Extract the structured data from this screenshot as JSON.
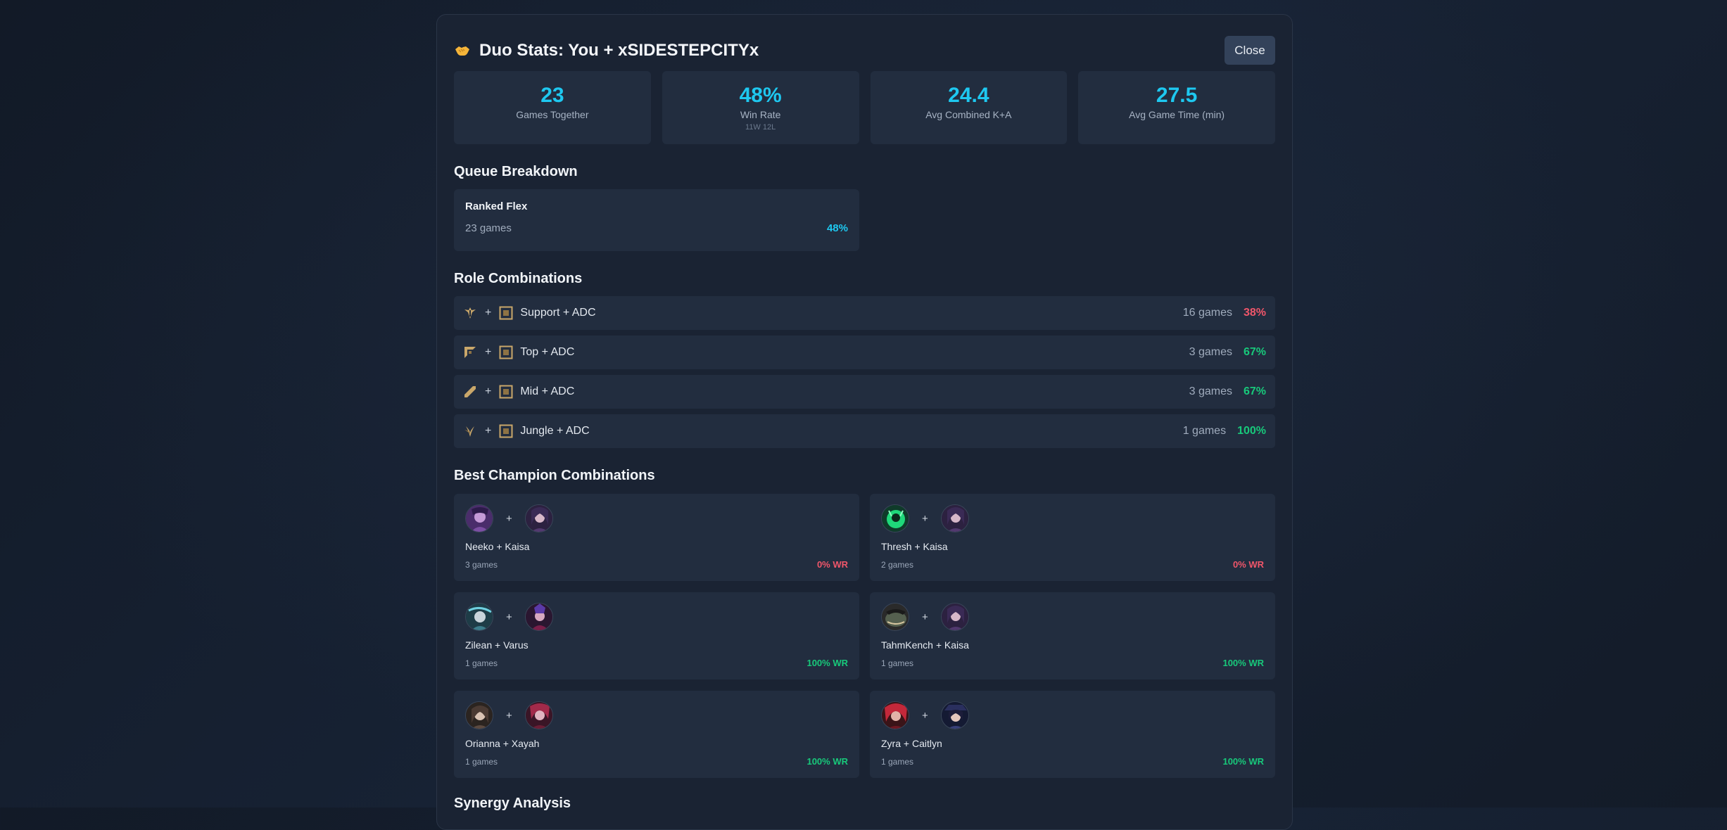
{
  "modal": {
    "title": "Duo Stats: You + xSIDESTEPCITYx",
    "title_icon": "handshake-icon",
    "close_label": "Close"
  },
  "stats": [
    {
      "value": "23",
      "label": "Games Together",
      "sub": ""
    },
    {
      "value": "48%",
      "label": "Win Rate",
      "sub": "11W 12L"
    },
    {
      "value": "24.4",
      "label": "Avg Combined K+A",
      "sub": ""
    },
    {
      "value": "27.5",
      "label": "Avg Game Time (min)",
      "sub": ""
    }
  ],
  "queue_section": {
    "title": "Queue Breakdown",
    "items": [
      {
        "name": "Ranked Flex",
        "games": "23 games",
        "winrate": "48%"
      }
    ]
  },
  "role_section": {
    "title": "Role Combinations",
    "items": [
      {
        "icon1": "support-role-icon",
        "icon2": "adc-role-icon",
        "label": "Support + ADC",
        "games": "16 games",
        "winrate": "38%",
        "status": "loss"
      },
      {
        "icon1": "top-role-icon",
        "icon2": "adc-role-icon",
        "label": "Top + ADC",
        "games": "3 games",
        "winrate": "67%",
        "status": "win"
      },
      {
        "icon1": "mid-role-icon",
        "icon2": "adc-role-icon",
        "label": "Mid + ADC",
        "games": "3 games",
        "winrate": "67%",
        "status": "win"
      },
      {
        "icon1": "jungle-role-icon",
        "icon2": "adc-role-icon",
        "label": "Jungle + ADC",
        "games": "1 games",
        "winrate": "100%",
        "status": "win"
      }
    ]
  },
  "champion_section": {
    "title": "Best Champion Combinations",
    "items": [
      {
        "names": "Neeko + Kaisa",
        "games": "3 games",
        "winrate": "0% WR",
        "status": "loss"
      },
      {
        "names": "Thresh + Kaisa",
        "games": "2 games",
        "winrate": "0% WR",
        "status": "loss"
      },
      {
        "names": "Zilean + Varus",
        "games": "1 games",
        "winrate": "100% WR",
        "status": "win"
      },
      {
        "names": "TahmKench + Kaisa",
        "games": "1 games",
        "winrate": "100% WR",
        "status": "win"
      },
      {
        "names": "Orianna + Xayah",
        "games": "1 games",
        "winrate": "100% WR",
        "status": "win"
      },
      {
        "names": "Zyra + Caitlyn",
        "games": "1 games",
        "winrate": "100% WR",
        "status": "win"
      }
    ]
  },
  "synergy_section": {
    "title": "Synergy Analysis"
  },
  "colors": {
    "accent": "#1ec8f0",
    "win": "#18c97b",
    "loss": "#f0566a",
    "card_bg": "#222d3f",
    "modal_bg": "#1a2333"
  }
}
